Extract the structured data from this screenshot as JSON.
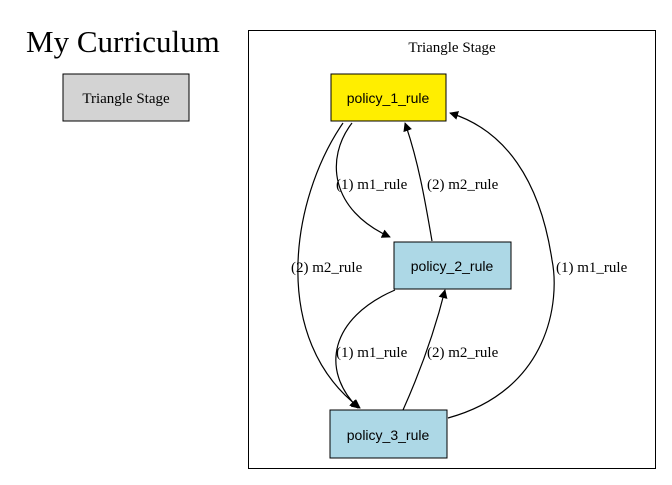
{
  "title": "My Curriculum",
  "legend": {
    "stage_label": "Triangle Stage",
    "fill": "#d3d3d3"
  },
  "stage": {
    "label": "Triangle Stage"
  },
  "nodes": {
    "policy_1": {
      "label": "policy_1_rule",
      "fill": "#ffee00"
    },
    "policy_2": {
      "label": "policy_2_rule",
      "fill": "#add8e6"
    },
    "policy_3": {
      "label": "policy_3_rule",
      "fill": "#add8e6"
    }
  },
  "edges": {
    "p1_to_p2": {
      "from": "policy_1_rule",
      "to": "policy_2_rule",
      "label": "(1) m1_rule"
    },
    "p2_to_p1": {
      "from": "policy_2_rule",
      "to": "policy_1_rule",
      "label": "(2) m2_rule"
    },
    "p1_to_p3": {
      "from": "policy_1_rule",
      "to": "policy_3_rule",
      "label": "(2) m2_rule"
    },
    "p2_to_p3": {
      "from": "policy_2_rule",
      "to": "policy_3_rule",
      "label": "(1) m1_rule"
    },
    "p3_to_p2": {
      "from": "policy_3_rule",
      "to": "policy_2_rule",
      "label": "(2) m2_rule"
    },
    "p3_to_p1": {
      "from": "policy_3_rule",
      "to": "policy_1_rule",
      "label": "(1) m1_rule"
    }
  }
}
